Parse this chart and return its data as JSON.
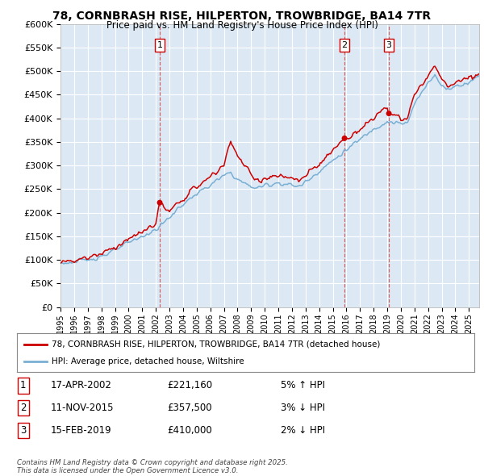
{
  "title": "78, CORNBRASH RISE, HILPERTON, TROWBRIDGE, BA14 7TR",
  "subtitle": "Price paid vs. HM Land Registry's House Price Index (HPI)",
  "ylim": [
    0,
    600000
  ],
  "yticks": [
    0,
    50000,
    100000,
    150000,
    200000,
    250000,
    300000,
    350000,
    400000,
    450000,
    500000,
    550000,
    600000
  ],
  "ytick_labels": [
    "£0",
    "£50K",
    "£100K",
    "£150K",
    "£200K",
    "£250K",
    "£300K",
    "£350K",
    "£400K",
    "£450K",
    "£500K",
    "£550K",
    "£600K"
  ],
  "bg_color": "#dce9f5",
  "line_color_red": "#cc0000",
  "line_color_blue": "#7aafd4",
  "grid_color": "#ffffff",
  "sale_dates": [
    2002.29,
    2015.86,
    2019.12
  ],
  "sale_prices": [
    221160,
    357500,
    410000
  ],
  "sale_labels": [
    "1",
    "2",
    "3"
  ],
  "legend_red": "78, CORNBRASH RISE, HILPERTON, TROWBRIDGE, BA14 7TR (detached house)",
  "legend_blue": "HPI: Average price, detached house, Wiltshire",
  "table_rows": [
    [
      "1",
      "17-APR-2002",
      "£221,160",
      "5% ↑ HPI"
    ],
    [
      "2",
      "11-NOV-2015",
      "£357,500",
      "3% ↓ HPI"
    ],
    [
      "3",
      "15-FEB-2019",
      "£410,000",
      "2% ↓ HPI"
    ]
  ],
  "footnote": "Contains HM Land Registry data © Crown copyright and database right 2025.\nThis data is licensed under the Open Government Licence v3.0.",
  "xmin": 1995,
  "xmax": 2025.75
}
